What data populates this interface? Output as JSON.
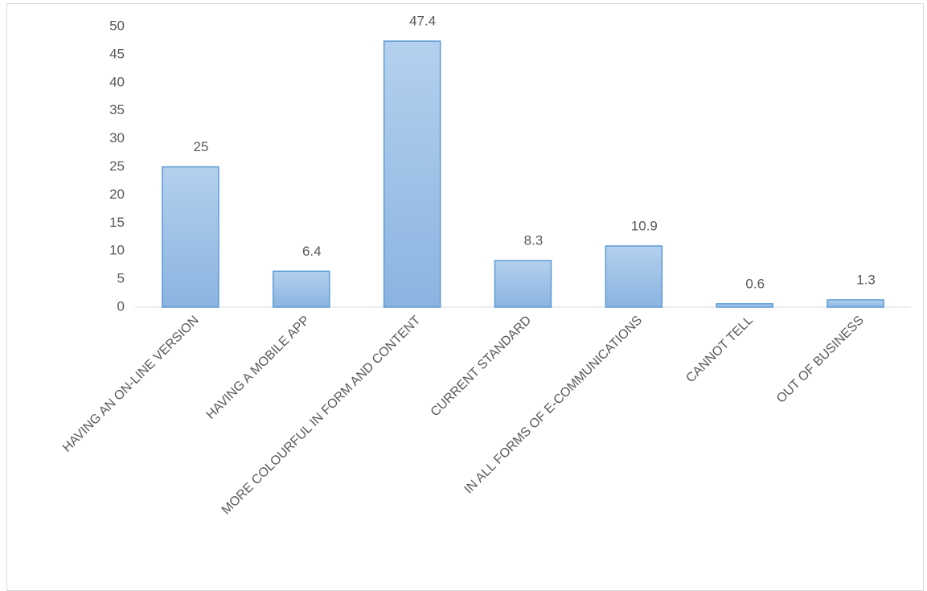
{
  "chart_data": {
    "type": "bar",
    "categories": [
      "HAVING AN ON-LINE VERSION",
      "HAVING A MOBILE APP",
      "MORE COLOURFUL IN FORM AND CONTENT",
      "CURRENT STANDARD",
      "IN ALL FORMS OF E-COMMUNICATIONS",
      "CANNOT TELL",
      "OUT OF BUSINESS"
    ],
    "values": [
      25,
      6.4,
      47.4,
      8.3,
      10.9,
      0.6,
      1.3
    ],
    "color": "#9dc3e6",
    "ylim": [
      0,
      50
    ],
    "yticks": [
      0,
      5,
      10,
      15,
      20,
      25,
      30,
      35,
      40,
      45,
      50
    ],
    "grid": false
  }
}
